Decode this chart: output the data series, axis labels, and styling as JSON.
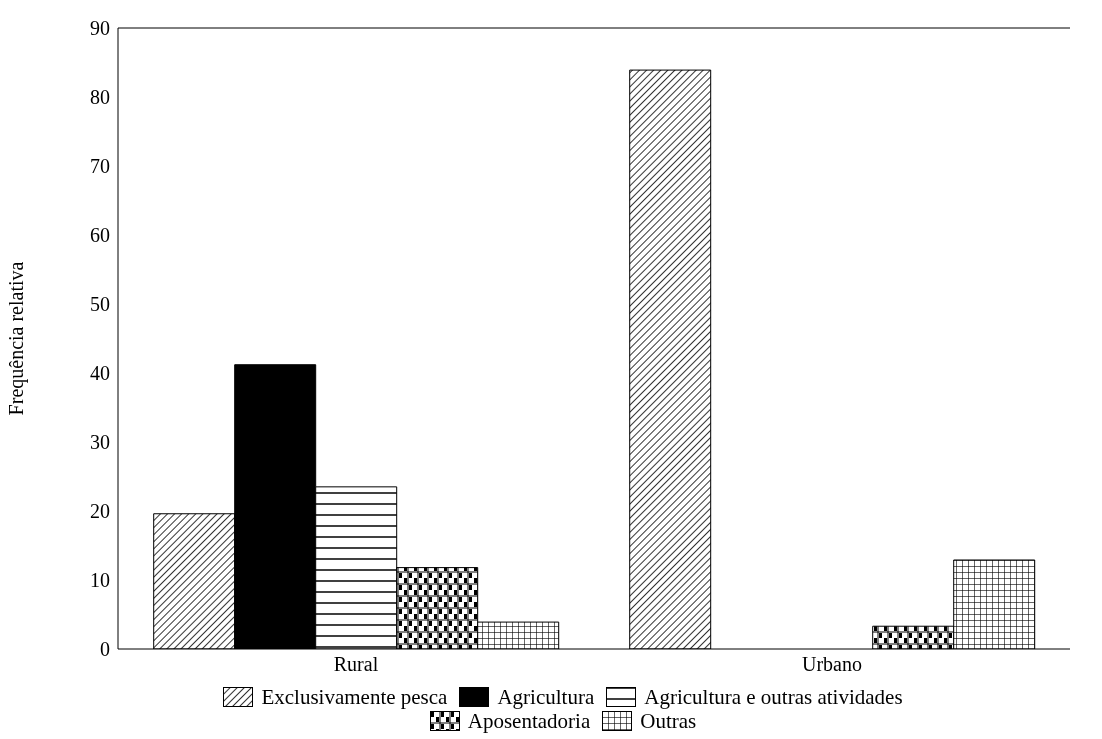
{
  "chart_data": {
    "type": "bar",
    "ylabel": "Frequência relativa",
    "categories": [
      "Rural",
      "Urbano"
    ],
    "series": [
      {
        "name": "Exclusivamente pesca",
        "color": "#000000",
        "values": [
          19.6,
          83.9
        ]
      },
      {
        "name": "Agricultura",
        "color": "#000000",
        "values": [
          41.2,
          0
        ]
      },
      {
        "name": "Agricultura e outras atividades",
        "color": "#000000",
        "values": [
          23.5,
          0
        ]
      },
      {
        "name": "Aposentadoria",
        "color": "#000000",
        "values": [
          11.8,
          3.3
        ]
      },
      {
        "name": "Outras",
        "color": "#000000",
        "values": [
          3.9,
          12.9
        ]
      }
    ],
    "ylim": [
      0,
      90
    ],
    "yticks": [
      0,
      10,
      20,
      30,
      40,
      50,
      60,
      70,
      80,
      90
    ],
    "grid": false,
    "legend": "bottom"
  }
}
